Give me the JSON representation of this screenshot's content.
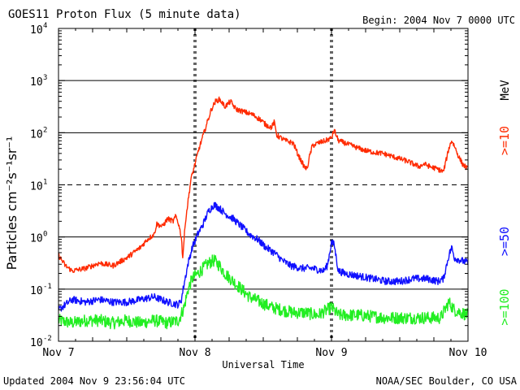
{
  "header": {
    "title": "GOES11 Proton Flux (5 minute data)",
    "begin": "Begin: 2004 Nov 7 0000 UTC"
  },
  "footer": {
    "updated": "Updated 2004 Nov  9 23:56:04 UTC",
    "credit": "NOAA/SEC Boulder, CO USA"
  },
  "chart_data": {
    "type": "line",
    "title": "GOES11 Proton Flux (5 minute data)",
    "xlabel": "Universal Time",
    "ylabel": "Particles cm⁻²s⁻¹sr⁻¹",
    "y_scale": "log",
    "x_unit": "days since 2004 Nov 7 0000 UTC",
    "xlim": [
      0,
      3
    ],
    "ylim_exponent": [
      -2,
      4
    ],
    "x_ticks": [
      {
        "x": 0,
        "label": "Nov 7"
      },
      {
        "x": 1,
        "label": "Nov 8"
      },
      {
        "x": 2,
        "label": "Nov 9"
      },
      {
        "x": 3,
        "label": "Nov 10"
      }
    ],
    "y_ticks": [
      {
        "exp": 4,
        "base": "10",
        "sup": "4"
      },
      {
        "exp": 3,
        "base": "10",
        "sup": "3"
      },
      {
        "exp": 2,
        "base": "10",
        "sup": "2"
      },
      {
        "exp": 1,
        "base": "10",
        "sup": "1"
      },
      {
        "exp": 0,
        "base": "10",
        "sup": "0"
      },
      {
        "exp": -1,
        "base": "10",
        "sup": "-1"
      },
      {
        "exp": -2,
        "base": "10",
        "sup": "-2"
      }
    ],
    "gridlines": [
      {
        "exp": 3,
        "style": "solid"
      },
      {
        "exp": 2,
        "style": "solid"
      },
      {
        "exp": 1,
        "style": "dashed"
      },
      {
        "exp": 0,
        "style": "solid"
      },
      {
        "exp": -1,
        "style": "solid"
      }
    ],
    "day_markers": [
      1,
      2
    ],
    "series": [
      {
        "name": ">=10 MeV",
        "color": "#ff2a00",
        "legend_main": ">=10",
        "legend_unit": "MeV",
        "jitter": 0.05,
        "log_points": [
          [
            0.0,
            -0.35
          ],
          [
            0.05,
            -0.55
          ],
          [
            0.1,
            -0.65
          ],
          [
            0.2,
            -0.6
          ],
          [
            0.3,
            -0.5
          ],
          [
            0.4,
            -0.55
          ],
          [
            0.5,
            -0.4
          ],
          [
            0.55,
            -0.3
          ],
          [
            0.6,
            -0.2
          ],
          [
            0.65,
            -0.05
          ],
          [
            0.7,
            0.05
          ],
          [
            0.72,
            0.25
          ],
          [
            0.76,
            0.2
          ],
          [
            0.8,
            0.35
          ],
          [
            0.84,
            0.3
          ],
          [
            0.86,
            0.4
          ],
          [
            0.88,
            0.25
          ],
          [
            0.9,
            0.0
          ],
          [
            0.91,
            -0.4
          ],
          [
            0.93,
            0.3
          ],
          [
            0.95,
            0.7
          ],
          [
            0.97,
            1.1
          ],
          [
            1.0,
            1.4
          ],
          [
            1.03,
            1.7
          ],
          [
            1.06,
            1.95
          ],
          [
            1.09,
            2.2
          ],
          [
            1.12,
            2.45
          ],
          [
            1.15,
            2.6
          ],
          [
            1.18,
            2.64
          ],
          [
            1.22,
            2.5
          ],
          [
            1.26,
            2.6
          ],
          [
            1.3,
            2.45
          ],
          [
            1.36,
            2.4
          ],
          [
            1.42,
            2.35
          ],
          [
            1.48,
            2.25
          ],
          [
            1.52,
            2.15
          ],
          [
            1.56,
            2.1
          ],
          [
            1.58,
            2.2
          ],
          [
            1.6,
            1.95
          ],
          [
            1.66,
            1.85
          ],
          [
            1.72,
            1.8
          ],
          [
            1.76,
            1.55
          ],
          [
            1.8,
            1.35
          ],
          [
            1.82,
            1.3
          ],
          [
            1.84,
            1.55
          ],
          [
            1.86,
            1.75
          ],
          [
            1.9,
            1.8
          ],
          [
            1.96,
            1.85
          ],
          [
            2.0,
            1.9
          ],
          [
            2.02,
            2.05
          ],
          [
            2.05,
            1.85
          ],
          [
            2.1,
            1.8
          ],
          [
            2.15,
            1.75
          ],
          [
            2.2,
            1.7
          ],
          [
            2.26,
            1.65
          ],
          [
            2.32,
            1.62
          ],
          [
            2.38,
            1.6
          ],
          [
            2.44,
            1.55
          ],
          [
            2.5,
            1.5
          ],
          [
            2.56,
            1.45
          ],
          [
            2.6,
            1.4
          ],
          [
            2.64,
            1.35
          ],
          [
            2.68,
            1.4
          ],
          [
            2.72,
            1.35
          ],
          [
            2.78,
            1.3
          ],
          [
            2.82,
            1.25
          ],
          [
            2.86,
            1.7
          ],
          [
            2.88,
            1.85
          ],
          [
            2.9,
            1.75
          ],
          [
            2.93,
            1.55
          ],
          [
            2.96,
            1.4
          ],
          [
            3.0,
            1.3
          ]
        ]
      },
      {
        "name": ">=50 MeV",
        "color": "#1010ff",
        "legend_main": ">=50",
        "legend_unit": "",
        "jitter": 0.07,
        "log_points": [
          [
            0.0,
            -1.4
          ],
          [
            0.05,
            -1.3
          ],
          [
            0.1,
            -1.2
          ],
          [
            0.2,
            -1.25
          ],
          [
            0.3,
            -1.2
          ],
          [
            0.4,
            -1.25
          ],
          [
            0.5,
            -1.25
          ],
          [
            0.6,
            -1.2
          ],
          [
            0.7,
            -1.15
          ],
          [
            0.8,
            -1.25
          ],
          [
            0.88,
            -1.3
          ],
          [
            0.9,
            -1.2
          ],
          [
            0.92,
            -0.9
          ],
          [
            0.95,
            -0.5
          ],
          [
            0.98,
            -0.2
          ],
          [
            1.02,
            0.05
          ],
          [
            1.06,
            0.25
          ],
          [
            1.1,
            0.5
          ],
          [
            1.14,
            0.62
          ],
          [
            1.18,
            0.55
          ],
          [
            1.22,
            0.45
          ],
          [
            1.28,
            0.35
          ],
          [
            1.34,
            0.2
          ],
          [
            1.4,
            0.05
          ],
          [
            1.46,
            -0.05
          ],
          [
            1.52,
            -0.2
          ],
          [
            1.58,
            -0.3
          ],
          [
            1.64,
            -0.45
          ],
          [
            1.7,
            -0.55
          ],
          [
            1.78,
            -0.6
          ],
          [
            1.86,
            -0.6
          ],
          [
            1.94,
            -0.65
          ],
          [
            1.97,
            -0.55
          ],
          [
            2.0,
            -0.1
          ],
          [
            2.02,
            -0.15
          ],
          [
            2.05,
            -0.65
          ],
          [
            2.1,
            -0.7
          ],
          [
            2.2,
            -0.75
          ],
          [
            2.3,
            -0.8
          ],
          [
            2.4,
            -0.85
          ],
          [
            2.5,
            -0.85
          ],
          [
            2.6,
            -0.8
          ],
          [
            2.7,
            -0.8
          ],
          [
            2.78,
            -0.85
          ],
          [
            2.82,
            -0.8
          ],
          [
            2.86,
            -0.35
          ],
          [
            2.88,
            -0.2
          ],
          [
            2.9,
            -0.4
          ],
          [
            2.95,
            -0.45
          ],
          [
            3.0,
            -0.5
          ]
        ]
      },
      {
        "name": ">=100 MeV",
        "color": "#22ee22",
        "legend_main": ">=100",
        "legend_unit": "",
        "jitter": 0.12,
        "log_points": [
          [
            0.0,
            -1.6
          ],
          [
            0.1,
            -1.65
          ],
          [
            0.2,
            -1.6
          ],
          [
            0.3,
            -1.6
          ],
          [
            0.4,
            -1.65
          ],
          [
            0.5,
            -1.6
          ],
          [
            0.6,
            -1.65
          ],
          [
            0.7,
            -1.6
          ],
          [
            0.8,
            -1.65
          ],
          [
            0.88,
            -1.6
          ],
          [
            0.92,
            -1.35
          ],
          [
            0.95,
            -1.0
          ],
          [
            0.98,
            -0.8
          ],
          [
            1.02,
            -0.7
          ],
          [
            1.06,
            -0.6
          ],
          [
            1.1,
            -0.5
          ],
          [
            1.14,
            -0.45
          ],
          [
            1.18,
            -0.55
          ],
          [
            1.22,
            -0.7
          ],
          [
            1.28,
            -0.85
          ],
          [
            1.34,
            -1.0
          ],
          [
            1.4,
            -1.15
          ],
          [
            1.48,
            -1.25
          ],
          [
            1.56,
            -1.35
          ],
          [
            1.64,
            -1.4
          ],
          [
            1.72,
            -1.45
          ],
          [
            1.8,
            -1.45
          ],
          [
            1.9,
            -1.5
          ],
          [
            2.0,
            -1.35
          ],
          [
            2.05,
            -1.5
          ],
          [
            2.2,
            -1.5
          ],
          [
            2.4,
            -1.55
          ],
          [
            2.6,
            -1.55
          ],
          [
            2.8,
            -1.55
          ],
          [
            2.86,
            -1.25
          ],
          [
            2.9,
            -1.4
          ],
          [
            3.0,
            -1.5
          ]
        ]
      }
    ]
  }
}
